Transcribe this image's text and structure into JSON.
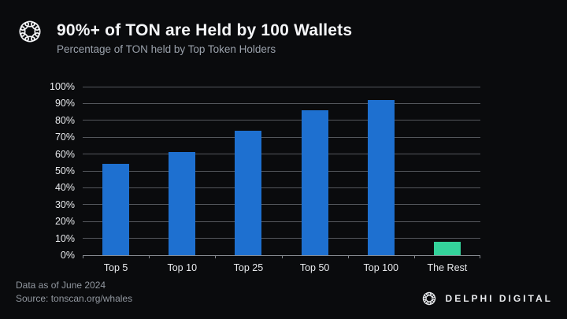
{
  "header": {
    "title": "90%+ of TON are Held by 100 Wallets",
    "subtitle": "Percentage of TON held by Top Token Holders"
  },
  "chart_data": {
    "type": "bar",
    "title": "90%+ of TON are Held by 100 Wallets",
    "subtitle": "Percentage of TON held by Top Token Holders",
    "categories": [
      "Top 5",
      "Top 10",
      "Top 25",
      "Top 50",
      "Top 100",
      "The Rest"
    ],
    "values": [
      54,
      61,
      74,
      86,
      92,
      8
    ],
    "unit": "%",
    "xlabel": "",
    "ylabel": "",
    "ylim": [
      0,
      100
    ],
    "ytick_step": 10,
    "yticks": [
      "0%",
      "10%",
      "20%",
      "30%",
      "40%",
      "50%",
      "60%",
      "70%",
      "80%",
      "90%",
      "100%"
    ],
    "grid": true,
    "legend": "none",
    "bar_colors": [
      "#1e70d0",
      "#1e70d0",
      "#1e70d0",
      "#1e70d0",
      "#1e70d0",
      "#34d39b"
    ]
  },
  "footer": {
    "data_as_of": "Data as of June 2024",
    "source": "Source: tonscan.org/whales",
    "brand": "DELPHI DIGITAL"
  },
  "colors": {
    "background": "#0a0b0d",
    "bar_blue": "#1e70d0",
    "bar_green": "#34d39b",
    "gridline": "#54575c",
    "axis": "#878b91",
    "title_text": "#f4f5f7",
    "muted_text": "#9aa1ab"
  }
}
